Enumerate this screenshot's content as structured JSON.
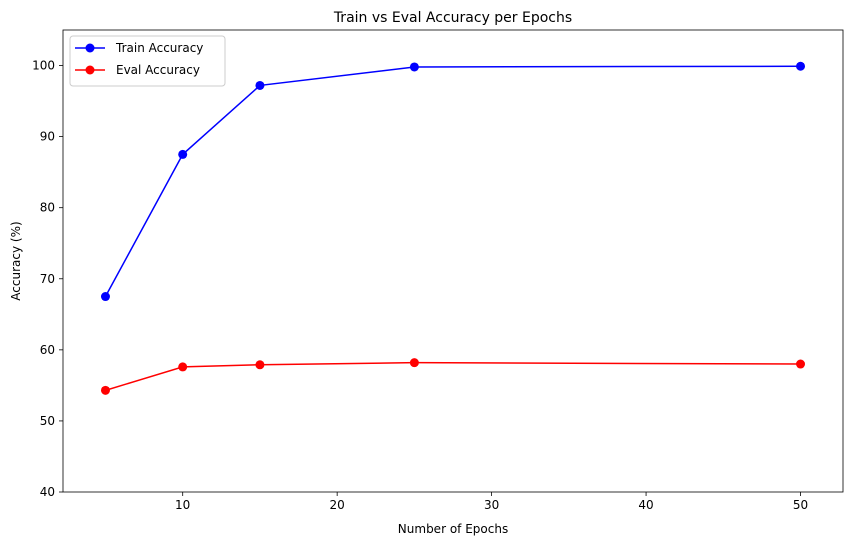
{
  "chart_data": {
    "type": "line",
    "title": "Train vs Eval Accuracy per Epochs",
    "xlabel": "Number of Epochs",
    "ylabel": "Accuracy (%)",
    "x": [
      5,
      10,
      15,
      25,
      50
    ],
    "xlim": [
      2.25,
      52.75
    ],
    "ylim": [
      40,
      105
    ],
    "xticks": [
      10,
      20,
      30,
      40,
      50
    ],
    "yticks": [
      40,
      50,
      60,
      70,
      80,
      90,
      100
    ],
    "grid": false,
    "legend_position": "top-left",
    "series": [
      {
        "name": "Train Accuracy",
        "color": "#0000ff",
        "marker": "circle",
        "values": [
          67.5,
          87.5,
          97.2,
          99.8,
          99.9
        ]
      },
      {
        "name": "Eval Accuracy",
        "color": "#ff0000",
        "marker": "circle",
        "values": [
          54.3,
          57.6,
          57.9,
          58.2,
          58.0
        ]
      }
    ]
  }
}
